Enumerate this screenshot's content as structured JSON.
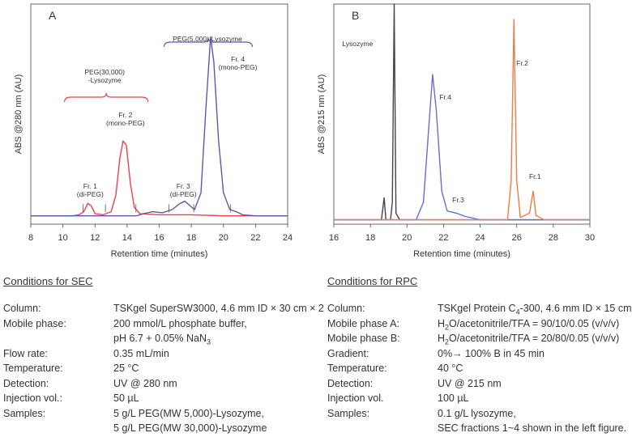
{
  "chart_data": [
    {
      "type": "line",
      "panel_label": "A",
      "xlabel": "Retention time (minutes)",
      "ylabel": "ABS @280 nm (AU)",
      "xlim": [
        8,
        24
      ],
      "x_ticks": [
        8,
        10,
        12,
        14,
        16,
        18,
        20,
        22,
        24
      ],
      "grid": false,
      "series": [
        {
          "color": "#e8434b",
          "points": [
            [
              8,
              0.04
            ],
            [
              10.6,
              0.04
            ],
            [
              11.0,
              0.045
            ],
            [
              11.3,
              0.06
            ],
            [
              11.55,
              0.1
            ],
            [
              11.75,
              0.09
            ],
            [
              12.0,
              0.05
            ],
            [
              12.5,
              0.045
            ],
            [
              13.0,
              0.06
            ],
            [
              13.3,
              0.14
            ],
            [
              13.55,
              0.32
            ],
            [
              13.75,
              0.4
            ],
            [
              13.95,
              0.38
            ],
            [
              14.2,
              0.2
            ],
            [
              14.45,
              0.08
            ],
            [
              14.8,
              0.05
            ],
            [
              16.0,
              0.045
            ],
            [
              17.0,
              0.045
            ],
            [
              18.0,
              0.045
            ],
            [
              20.0,
              0.04
            ],
            [
              24,
              0.04
            ]
          ]
        },
        {
          "color": "#5a5aa8",
          "points": [
            [
              8,
              0.04
            ],
            [
              14.6,
              0.04
            ],
            [
              15.0,
              0.05
            ],
            [
              15.6,
              0.06
            ],
            [
              16.2,
              0.055
            ],
            [
              16.8,
              0.07
            ],
            [
              17.3,
              0.1
            ],
            [
              17.6,
              0.11
            ],
            [
              17.9,
              0.09
            ],
            [
              18.2,
              0.07
            ],
            [
              18.6,
              0.15
            ],
            [
              18.9,
              0.55
            ],
            [
              19.2,
              0.9
            ],
            [
              19.4,
              0.78
            ],
            [
              19.7,
              0.4
            ],
            [
              20.0,
              0.15
            ],
            [
              20.4,
              0.07
            ],
            [
              20.8,
              0.06
            ],
            [
              21.2,
              0.045
            ],
            [
              22.0,
              0.04
            ],
            [
              24,
              0.04
            ]
          ]
        }
      ],
      "annotations": [
        {
          "label": "PEG(30,000)\n-Lysozyme",
          "x": 12.6,
          "bracket": [
            10.1,
            15.3
          ],
          "color": "#e8434b"
        },
        {
          "label": "PEG(5,000)-Lysozyme",
          "x": 19.0,
          "bracket": [
            16.3,
            21.8
          ],
          "color": "#5a5aa8"
        },
        {
          "label": "Fr. 1\n(di-PEG)",
          "x": 11.7
        },
        {
          "label": "Fr. 2\n(mono-PEG)",
          "x": 13.9
        },
        {
          "label": "Fr. 3\n(di-PEG)",
          "x": 17.5
        },
        {
          "label": "Fr. 4\n(mono-PEG)",
          "x": 20.6
        }
      ]
    },
    {
      "type": "line",
      "panel_label": "B",
      "xlabel": "Retention time (minutes)",
      "ylabel": "ABS @215 nm (AU)",
      "xlim": [
        16,
        30
      ],
      "x_ticks": [
        16,
        18,
        20,
        22,
        24,
        26,
        28,
        30
      ],
      "grid": false,
      "series": [
        {
          "color": "#444444",
          "points": [
            [
              16,
              0.02
            ],
            [
              18.6,
              0.02
            ],
            [
              18.75,
              0.12
            ],
            [
              18.85,
              0.02
            ],
            [
              19.1,
              0.02
            ],
            [
              19.2,
              0.1
            ],
            [
              19.3,
              1.0
            ],
            [
              19.4,
              0.05
            ],
            [
              19.6,
              0.02
            ],
            [
              30,
              0.02
            ]
          ]
        },
        {
          "color": "#6b6bd0",
          "points": [
            [
              16,
              0.02
            ],
            [
              20.5,
              0.02
            ],
            [
              20.9,
              0.1
            ],
            [
              21.2,
              0.45
            ],
            [
              21.4,
              0.68
            ],
            [
              21.6,
              0.52
            ],
            [
              21.9,
              0.15
            ],
            [
              22.2,
              0.06
            ],
            [
              22.7,
              0.05
            ],
            [
              23.2,
              0.035
            ],
            [
              24.0,
              0.02
            ],
            [
              30,
              0.02
            ]
          ]
        },
        {
          "color": "#f07a4a",
          "points": [
            [
              16,
              0.02
            ],
            [
              25.5,
              0.02
            ],
            [
              25.7,
              0.2
            ],
            [
              25.85,
              0.93
            ],
            [
              26.0,
              0.2
            ],
            [
              26.2,
              0.03
            ],
            [
              26.7,
              0.05
            ],
            [
              26.9,
              0.15
            ],
            [
              27.05,
              0.04
            ],
            [
              27.5,
              0.02
            ],
            [
              30,
              0.02
            ]
          ]
        }
      ],
      "annotations": [
        {
          "label": "Lysozyme",
          "x": 17.3
        },
        {
          "label": "Fr.4",
          "x": 22.1
        },
        {
          "label": "Fr.3",
          "x": 22.8
        },
        {
          "label": "Fr.2",
          "x": 26.3
        },
        {
          "label": "Fr.1",
          "x": 27.0
        }
      ]
    }
  ],
  "conditions": {
    "sec": {
      "title": "Conditions for SEC",
      "rows": [
        {
          "key": "Column:",
          "lines": [
            "TSKgel SuperSW3000, 4.6 mm ID × 30 cm × 2"
          ]
        },
        {
          "key": "Mobile phase:",
          "lines": [
            "200 mmol/L phosphate buffer,",
            "pH 6.7 + 0.05% NaN3"
          ]
        },
        {
          "key": "Flow rate:",
          "lines": [
            "0.35 mL/min"
          ]
        },
        {
          "key": "Temperature:",
          "lines": [
            "25 °C"
          ]
        },
        {
          "key": "Detection:",
          "lines": [
            "UV @ 280 nm"
          ]
        },
        {
          "key": "Injection vol.:",
          "lines": [
            "50 µL"
          ]
        },
        {
          "key": "Samples:",
          "lines": [
            "5 g/L PEG(MW 5,000)-Lysozyme,",
            "5 g/L PEG(MW 30,000)-Lysozyme"
          ]
        }
      ]
    },
    "rpc": {
      "title": "Conditions for RPC",
      "rows": [
        {
          "key": "Column:",
          "lines": [
            "TSKgel Protein C4-300, 4.6 mm ID × 15 cm"
          ]
        },
        {
          "key": "Mobile phase A:",
          "lines": [
            "H2O/acetonitrile/TFA = 90/10/0.05 (v/v/v)"
          ]
        },
        {
          "key": "Mobile phase B:",
          "lines": [
            "H2O/acetonitrile/TFA = 20/80/0.05 (v/v/v)"
          ]
        },
        {
          "key": "Gradient:",
          "lines": [
            "0%→ 100% B in 45 min"
          ]
        },
        {
          "key": "Temperature:",
          "lines": [
            "40 °C"
          ]
        },
        {
          "key": "Detection:",
          "lines": [
            "UV @ 215 nm"
          ]
        },
        {
          "key": "Injection vol.",
          "lines": [
            "100 µL"
          ]
        },
        {
          "key": "Samples:",
          "lines": [
            "0.1 g/L lysozyme,",
            "SEC fractions 1~4 shown in the left figure."
          ]
        }
      ]
    }
  }
}
